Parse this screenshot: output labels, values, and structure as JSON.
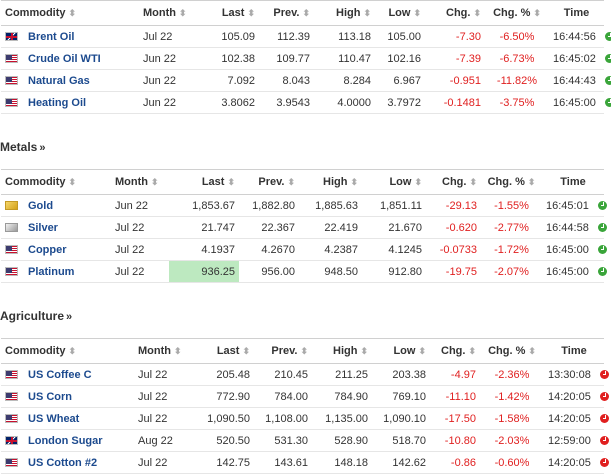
{
  "energy": {
    "headers": {
      "commodity": "Commodity",
      "month": "Month",
      "last": "Last",
      "prev": "Prev.",
      "high": "High",
      "low": "Low",
      "chg": "Chg.",
      "chg_pct": "Chg. %",
      "time": "Time"
    },
    "rows": [
      {
        "flag": "uk",
        "name": "Brent Oil",
        "month": "Jul 22",
        "last": "105.09",
        "prev": "112.39",
        "high": "113.18",
        "low": "105.00",
        "chg": "-7.30",
        "chg_pct": "-6.50%",
        "time": "16:44:56",
        "status": "open"
      },
      {
        "flag": "us",
        "name": "Crude Oil WTI",
        "month": "Jun 22",
        "last": "102.38",
        "prev": "109.77",
        "high": "110.47",
        "low": "102.16",
        "chg": "-7.39",
        "chg_pct": "-6.73%",
        "time": "16:45:02",
        "status": "open"
      },
      {
        "flag": "us",
        "name": "Natural Gas",
        "month": "Jun 22",
        "last": "7.092",
        "prev": "8.043",
        "high": "8.284",
        "low": "6.967",
        "chg": "-0.951",
        "chg_pct": "-11.82%",
        "time": "16:44:43",
        "status": "open"
      },
      {
        "flag": "us",
        "name": "Heating Oil",
        "month": "Jun 22",
        "last": "3.8062",
        "prev": "3.9543",
        "high": "4.0000",
        "low": "3.7972",
        "chg": "-0.1481",
        "chg_pct": "-3.75%",
        "time": "16:45:00",
        "status": "open"
      }
    ]
  },
  "metals": {
    "title": "Metals",
    "headers": {
      "commodity": "Commodity",
      "month": "Month",
      "last": "Last",
      "prev": "Prev.",
      "high": "High",
      "low": "Low",
      "chg": "Chg.",
      "chg_pct": "Chg. %",
      "time": "Time"
    },
    "rows": [
      {
        "flag": "gold",
        "name": "Gold",
        "month": "Jun 22",
        "last": "1,853.67",
        "prev": "1,882.80",
        "high": "1,885.63",
        "low": "1,851.11",
        "chg": "-29.13",
        "chg_pct": "-1.55%",
        "time": "16:45:01",
        "status": "open"
      },
      {
        "flag": "silver",
        "name": "Silver",
        "month": "Jul 22",
        "last": "21.747",
        "prev": "22.367",
        "high": "22.419",
        "low": "21.670",
        "chg": "-0.620",
        "chg_pct": "-2.77%",
        "time": "16:44:58",
        "status": "open"
      },
      {
        "flag": "us",
        "name": "Copper",
        "month": "Jul 22",
        "last": "4.1937",
        "prev": "4.2670",
        "high": "4.2387",
        "low": "4.1245",
        "chg": "-0.0733",
        "chg_pct": "-1.72%",
        "time": "16:45:00",
        "status": "open"
      },
      {
        "flag": "us",
        "name": "Platinum",
        "month": "Jul 22",
        "last": "936.25",
        "prev": "956.00",
        "high": "948.50",
        "low": "912.80",
        "chg": "-19.75",
        "chg_pct": "-2.07%",
        "time": "16:45:00",
        "status": "open",
        "highlight": true
      }
    ]
  },
  "agriculture": {
    "title": "Agriculture",
    "headers": {
      "commodity": "Commodity",
      "month": "Month",
      "last": "Last",
      "prev": "Prev.",
      "high": "High",
      "low": "Low",
      "chg": "Chg.",
      "chg_pct": "Chg. %",
      "time": "Time"
    },
    "rows": [
      {
        "flag": "us",
        "name": "US Coffee C",
        "month": "Jul 22",
        "last": "205.48",
        "prev": "210.45",
        "high": "211.25",
        "low": "203.38",
        "chg": "-4.97",
        "chg_pct": "-2.36%",
        "time": "13:30:08",
        "status": "closed"
      },
      {
        "flag": "us",
        "name": "US Corn",
        "month": "Jul 22",
        "last": "772.90",
        "prev": "784.00",
        "high": "784.90",
        "low": "769.10",
        "chg": "-11.10",
        "chg_pct": "-1.42%",
        "time": "14:20:05",
        "status": "closed"
      },
      {
        "flag": "us",
        "name": "US Wheat",
        "month": "Jul 22",
        "last": "1,090.50",
        "prev": "1,108.00",
        "high": "1,135.00",
        "low": "1,090.10",
        "chg": "-17.50",
        "chg_pct": "-1.58%",
        "time": "14:20:05",
        "status": "closed"
      },
      {
        "flag": "uk",
        "name": "London Sugar",
        "month": "Aug 22",
        "last": "520.50",
        "prev": "531.30",
        "high": "528.90",
        "low": "518.70",
        "chg": "-10.80",
        "chg_pct": "-2.03%",
        "time": "12:59:00",
        "status": "closed"
      },
      {
        "flag": "us",
        "name": "US Cotton #2",
        "month": "Jul 22",
        "last": "142.75",
        "prev": "143.61",
        "high": "148.18",
        "low": "142.62",
        "chg": "-0.86",
        "chg_pct": "-0.60%",
        "time": "14:20:05",
        "status": "closed"
      }
    ]
  },
  "section_link_glyph": "»",
  "sort_glyph": "⬍",
  "colors": {
    "negative": "#e02020",
    "link": "#1c4a8e",
    "highlight": "#bde9c0",
    "open": "#3aa53a",
    "closed": "#e02020"
  }
}
